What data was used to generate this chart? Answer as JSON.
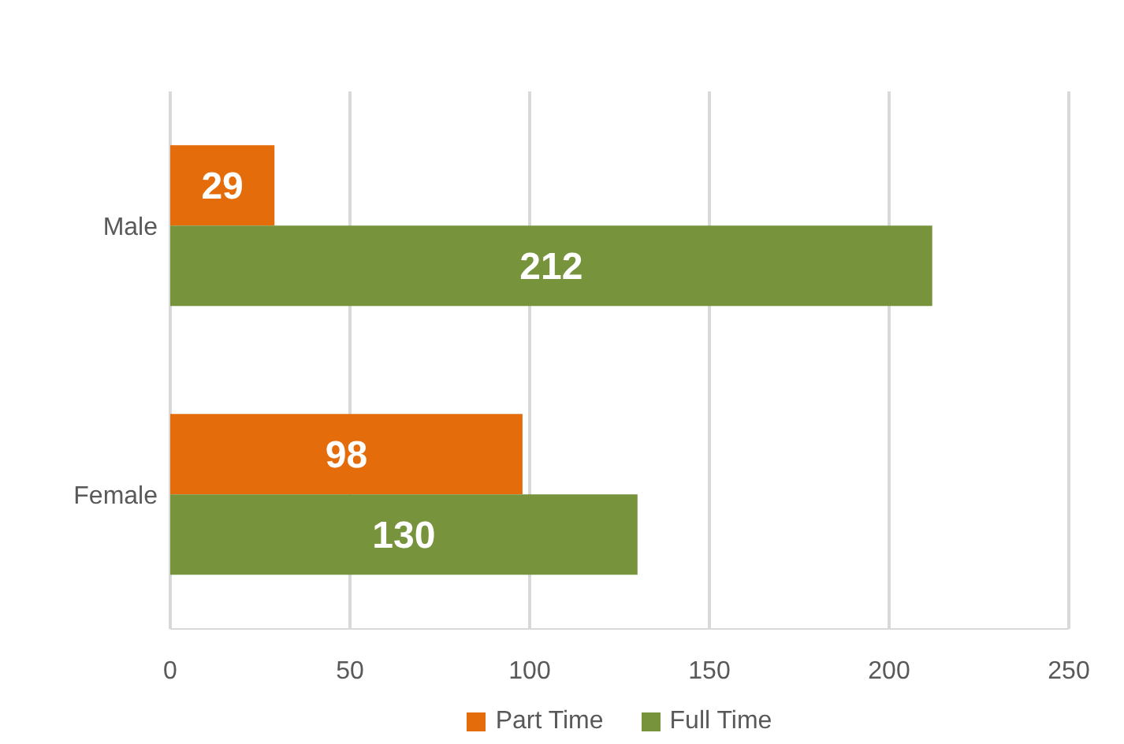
{
  "chart_data": {
    "type": "bar",
    "orientation": "horizontal",
    "categories": [
      "Male",
      "Female"
    ],
    "series": [
      {
        "name": "Part Time",
        "color": "#e46c0a",
        "values": [
          29,
          98
        ]
      },
      {
        "name": "Full Time",
        "color": "#77933c",
        "values": [
          212,
          130
        ]
      }
    ],
    "xlim": [
      0,
      250
    ],
    "xticks": [
      0,
      50,
      100,
      150,
      200,
      250
    ],
    "grid": "x",
    "legend": "bottom",
    "data_labels": true
  }
}
